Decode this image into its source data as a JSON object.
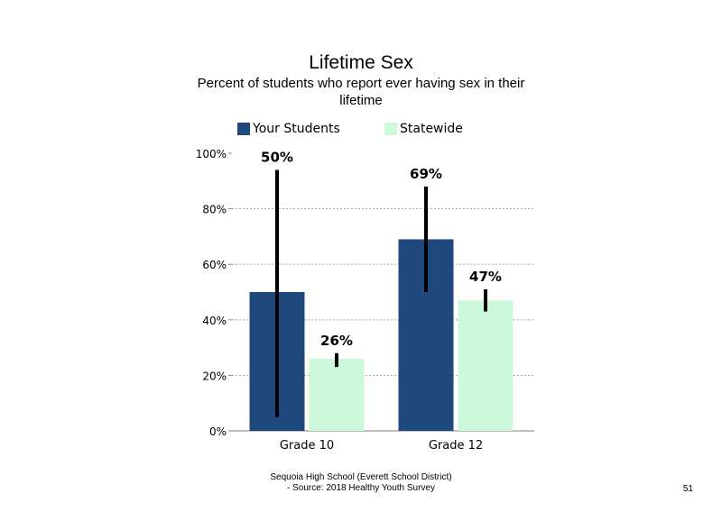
{
  "chart_data": {
    "type": "bar",
    "title": "Lifetime Sex",
    "subtitle": "Percent of students who report ever having sex in their lifetime",
    "categories": [
      "Grade 10",
      "Grade 12"
    ],
    "series": [
      {
        "name": "Your Students",
        "color": "#1f497d",
        "values": [
          50,
          69
        ],
        "value_labels": [
          "50%",
          "69%"
        ],
        "ci_low": [
          5,
          50
        ],
        "ci_high": [
          94,
          88
        ]
      },
      {
        "name": "Statewide",
        "color": "#ccf9dc",
        "values": [
          26,
          47
        ],
        "value_labels": [
          "26%",
          "47%"
        ],
        "ci_low": [
          23,
          43
        ],
        "ci_high": [
          28,
          51
        ]
      }
    ],
    "ylim": [
      0,
      100
    ],
    "yticks": [
      0,
      20,
      40,
      60,
      80,
      100
    ],
    "ytick_labels": [
      "0%",
      "20%",
      "40%",
      "60%",
      "80%",
      "100%"
    ],
    "grid": true,
    "legend_position": "top",
    "error_bars": true
  },
  "footer": {
    "line1": "Sequoia High School (Everett School District)",
    "line2": "- Source: 2018 Healthy Youth Survey"
  },
  "page_number": "51"
}
